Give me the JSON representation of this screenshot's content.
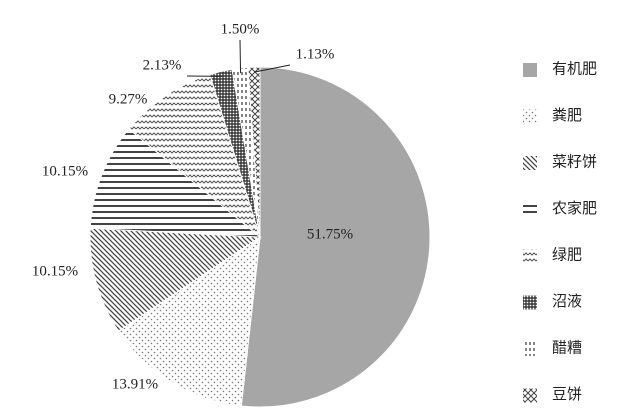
{
  "chart_data": {
    "type": "pie",
    "categories": [
      "有机肥",
      "粪肥",
      "菜籽饼",
      "农家肥",
      "绿肥",
      "沼液",
      "醋糟",
      "豆饼"
    ],
    "values": [
      51.75,
      13.91,
      10.15,
      10.15,
      9.27,
      2.13,
      1.5,
      1.13
    ],
    "value_labels": [
      "51.75%",
      "13.91%",
      "10.15%",
      "10.15%",
      "9.27%",
      "2.13%",
      "1.50%",
      "1.13%"
    ],
    "legend": "right"
  }
}
